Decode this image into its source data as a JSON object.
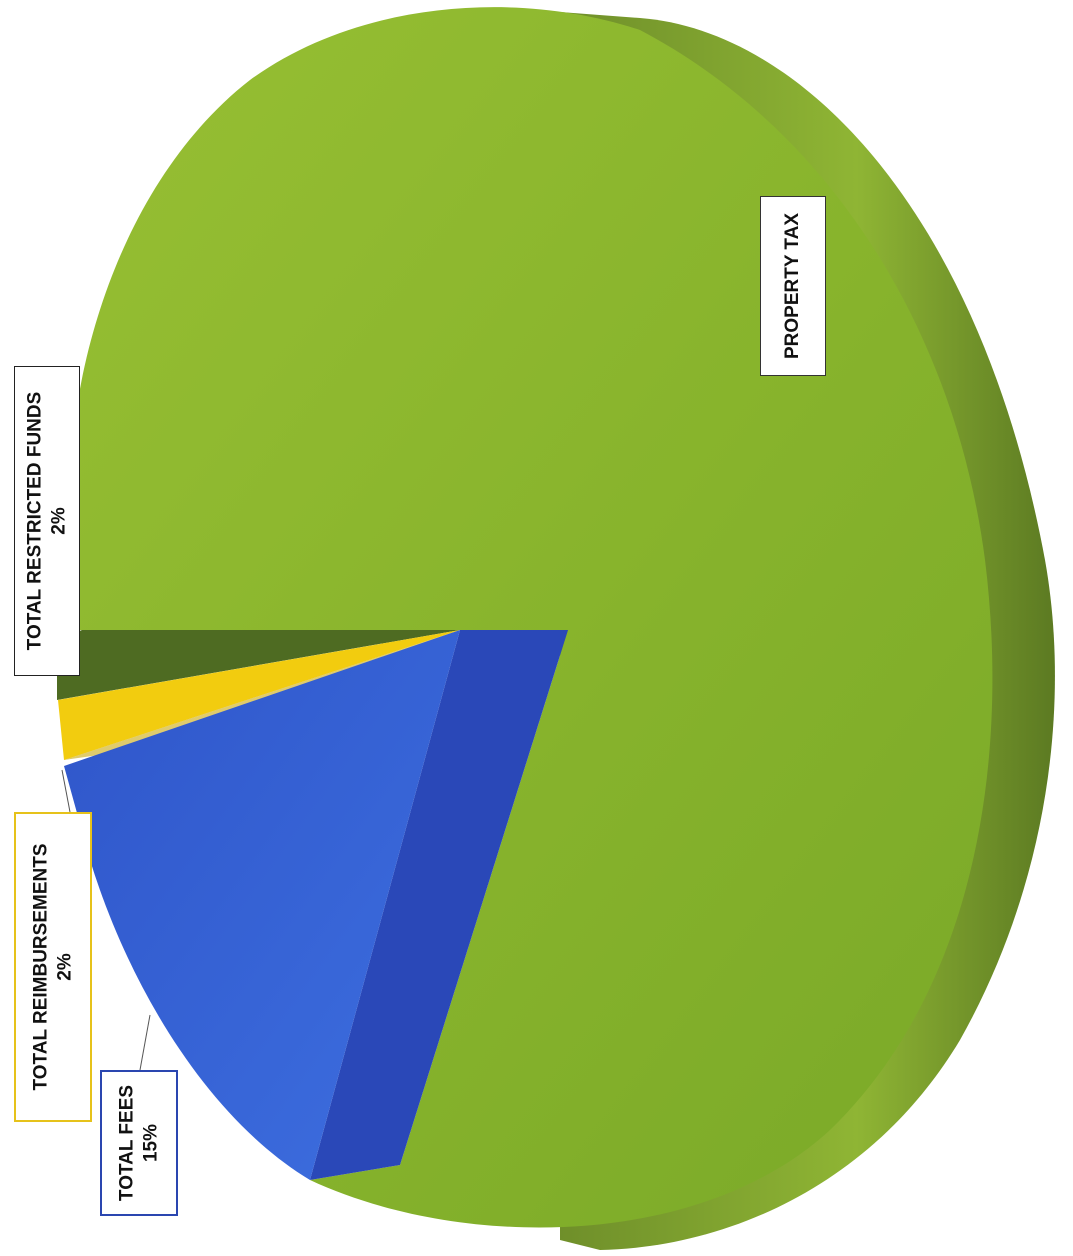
{
  "chart_data": {
    "type": "pie",
    "title": "",
    "slices": [
      {
        "name": "PROPERTY TAX",
        "value": null,
        "value_label": "",
        "color": "#8ab72f"
      },
      {
        "name": "TOTAL FEES",
        "value": 15,
        "value_label": "15%",
        "color": "#3a63d6"
      },
      {
        "name": "TOTAL REIMBURSEMENTS",
        "value": 2,
        "value_label": "2%",
        "color": "#f2cc0f"
      },
      {
        "name": "TOTAL RESTRICTED FUNDS",
        "value": 2,
        "value_label": "2%",
        "color": "#4e6b22"
      }
    ],
    "style": "3d-rotated"
  }
}
